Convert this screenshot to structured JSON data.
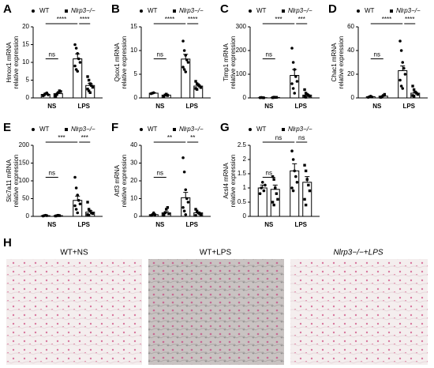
{
  "chart_data": [
    {
      "type": "bar",
      "panel": "A",
      "ylabel": [
        "Hmox1 mRNA",
        "relative expression"
      ],
      "categories": [
        "NS",
        "LPS"
      ],
      "ylim": [
        0,
        20
      ],
      "yticks": [
        0,
        5,
        10,
        15,
        20
      ],
      "series": [
        {
          "name": "WT",
          "color": "#000000",
          "values": [
            1,
            11
          ],
          "errors": [
            0.3,
            1.4
          ],
          "points": [
            [
              0.6,
              0.8,
              1.2,
              1.4,
              0.9
            ],
            [
              15,
              14,
              12.5,
              11,
              10,
              9,
              8,
              7.5
            ]
          ]
        },
        {
          "name": "Nlrp3−/−",
          "color": "#000000",
          "values": [
            1.2,
            3.5
          ],
          "errors": [
            0.3,
            0.6
          ],
          "points": [
            [
              0.5,
              1,
              1.5,
              2,
              1.8,
              0.8
            ],
            [
              6,
              5,
              4,
              3.5,
              3,
              2.5,
              2,
              1.5
            ]
          ]
        }
      ],
      "annotations": [
        "ns",
        "****",
        "****"
      ]
    },
    {
      "type": "bar",
      "panel": "B",
      "ylabel": [
        "Qsox1 mRNA",
        "relative expression"
      ],
      "categories": [
        "NS",
        "LPS"
      ],
      "ylim": [
        0,
        15
      ],
      "yticks": [
        0,
        5,
        10,
        15
      ],
      "series": [
        {
          "name": "WT",
          "color": "#000000",
          "values": [
            1,
            8.2
          ],
          "errors": [
            0.1,
            1.0
          ],
          "points": [
            [
              0.9,
              1,
              1.1
            ],
            [
              12,
              10,
              9,
              8,
              7.5,
              6.5,
              6,
              5.5
            ]
          ]
        },
        {
          "name": "Nlrp3−/−",
          "color": "#000000",
          "values": [
            0.6,
            2.5
          ],
          "errors": [
            0.2,
            0.3
          ],
          "points": [
            [
              0.3,
              0.6,
              0.8,
              0.5
            ],
            [
              3.5,
              3,
              2.8,
              2.5,
              2.2,
              2,
              1.8
            ]
          ]
        }
      ],
      "annotations": [
        "ns",
        "****",
        "****"
      ]
    },
    {
      "type": "bar",
      "panel": "C",
      "ylabel": [
        "Timp1 mRNA",
        "relative expression"
      ],
      "categories": [
        "NS",
        "LPS"
      ],
      "ylim": [
        0,
        300
      ],
      "yticks": [
        0,
        100,
        200,
        300
      ],
      "series": [
        {
          "name": "WT",
          "color": "#000000",
          "values": [
            1,
            95
          ],
          "errors": [
            0.5,
            25
          ],
          "points": [
            [
              1,
              2,
              1,
              0.5
            ],
            [
              210,
              150,
              120,
              90,
              70,
              60,
              40,
              20
            ]
          ]
        },
        {
          "name": "Nlrp3−/−",
          "color": "#000000",
          "values": [
            2,
            12
          ],
          "errors": [
            1,
            4
          ],
          "points": [
            [
              1,
              3,
              2,
              2.5
            ],
            [
              35,
              20,
              15,
              10,
              8,
              5,
              3
            ]
          ]
        }
      ],
      "annotations": [
        "ns",
        "***",
        "***"
      ]
    },
    {
      "type": "bar",
      "panel": "D",
      "ylabel": [
        "Chac1 mRNA",
        "relative expression"
      ],
      "categories": [
        "NS",
        "LPS"
      ],
      "ylim": [
        0,
        60
      ],
      "yticks": [
        0,
        20,
        40,
        60
      ],
      "series": [
        {
          "name": "WT",
          "color": "#000000",
          "values": [
            1,
            23
          ],
          "errors": [
            0.3,
            4
          ],
          "points": [
            [
              0.5,
              1,
              1.5,
              0.8
            ],
            [
              48,
              40,
              30,
              25,
              20,
              15,
              10,
              8
            ]
          ]
        },
        {
          "name": "Nlrp3−/−",
          "color": "#000000",
          "values": [
            1.5,
            4
          ],
          "errors": [
            0.5,
            1
          ],
          "points": [
            [
              0.5,
              1,
              2,
              3
            ],
            [
              10,
              7,
              5,
              4,
              3,
              2,
              1.5
            ]
          ]
        }
      ],
      "annotations": [
        "ns",
        "****",
        "****"
      ]
    },
    {
      "type": "bar",
      "panel": "E",
      "ylabel": [
        "Slc7a11 mRNA",
        "relative expression"
      ],
      "categories": [
        "NS",
        "LPS"
      ],
      "ylim": [
        0,
        200
      ],
      "yticks": [
        0,
        50,
        100,
        150,
        200
      ],
      "series": [
        {
          "name": "WT",
          "color": "#000000",
          "values": [
            2,
            45
          ],
          "errors": [
            1,
            12
          ],
          "points": [
            [
              1,
              2,
              3,
              2
            ],
            [
              110,
              80,
              60,
              45,
              35,
              30,
              20,
              10
            ]
          ]
        },
        {
          "name": "Nlrp3−/−",
          "color": "#000000",
          "values": [
            2,
            12
          ],
          "errors": [
            1,
            4
          ],
          "points": [
            [
              1,
              2,
              3,
              2
            ],
            [
              40,
              20,
              15,
              10,
              8,
              5,
              3
            ]
          ]
        }
      ],
      "annotations": [
        "ns",
        "***",
        "***"
      ]
    },
    {
      "type": "bar",
      "panel": "F",
      "ylabel": [
        "Atf3 mRNA",
        "relative expression"
      ],
      "categories": [
        "NS",
        "LPS"
      ],
      "ylim": [
        0,
        40
      ],
      "yticks": [
        0,
        10,
        20,
        30,
        40
      ],
      "series": [
        {
          "name": "WT",
          "color": "#000000",
          "values": [
            1,
            10.5
          ],
          "errors": [
            0.5,
            3
          ],
          "points": [
            [
              0.5,
              1,
              2,
              0.8
            ],
            [
              33,
              25,
              15,
              10,
              8,
              5,
              3,
              1
            ]
          ]
        },
        {
          "name": "Nlrp3−/−",
          "color": "#000000",
          "values": [
            2,
            2
          ],
          "errors": [
            0.7,
            0.5
          ],
          "points": [
            [
              1,
              2,
              4,
              5,
              1.5,
              0.5
            ],
            [
              4,
              3,
              2,
              1.5,
              1,
              0.5
            ]
          ]
        }
      ],
      "annotations": [
        "ns",
        "**",
        "**"
      ]
    },
    {
      "type": "bar",
      "panel": "G",
      "ylabel": [
        "Acsl4 mRNA",
        "relative expression"
      ],
      "categories": [
        "NS",
        "LPS"
      ],
      "ylim": [
        0,
        2.5
      ],
      "yticks": [
        0,
        0.5,
        1,
        1.5,
        2,
        2.5
      ],
      "series": [
        {
          "name": "WT",
          "color": "#000000",
          "values": [
            1,
            1.6
          ],
          "errors": [
            0.1,
            0.25
          ],
          "points": [
            [
              0.8,
              1,
              1.2,
              0.9,
              1.1
            ],
            [
              2.3,
              2,
              1.6,
              1.4,
              1.2,
              1,
              0.9
            ]
          ]
        },
        {
          "name": "Nlrp3−/−",
          "color": "#000000",
          "values": [
            0.95,
            1.2
          ],
          "errors": [
            0.15,
            0.2
          ],
          "points": [
            [
              1.4,
              1.3,
              1,
              0.8,
              0.6,
              0.5,
              0.4
            ],
            [
              1.8,
              1.6,
              1.3,
              1.1,
              0.9,
              0.6,
              0.4
            ]
          ]
        }
      ],
      "annotations": [
        "ns",
        "ns",
        "ns"
      ]
    }
  ],
  "panel_h": {
    "panel": "H",
    "captions": [
      "WT+NS",
      "WT+LPS",
      "Nlrp3−/−+LPS"
    ]
  }
}
